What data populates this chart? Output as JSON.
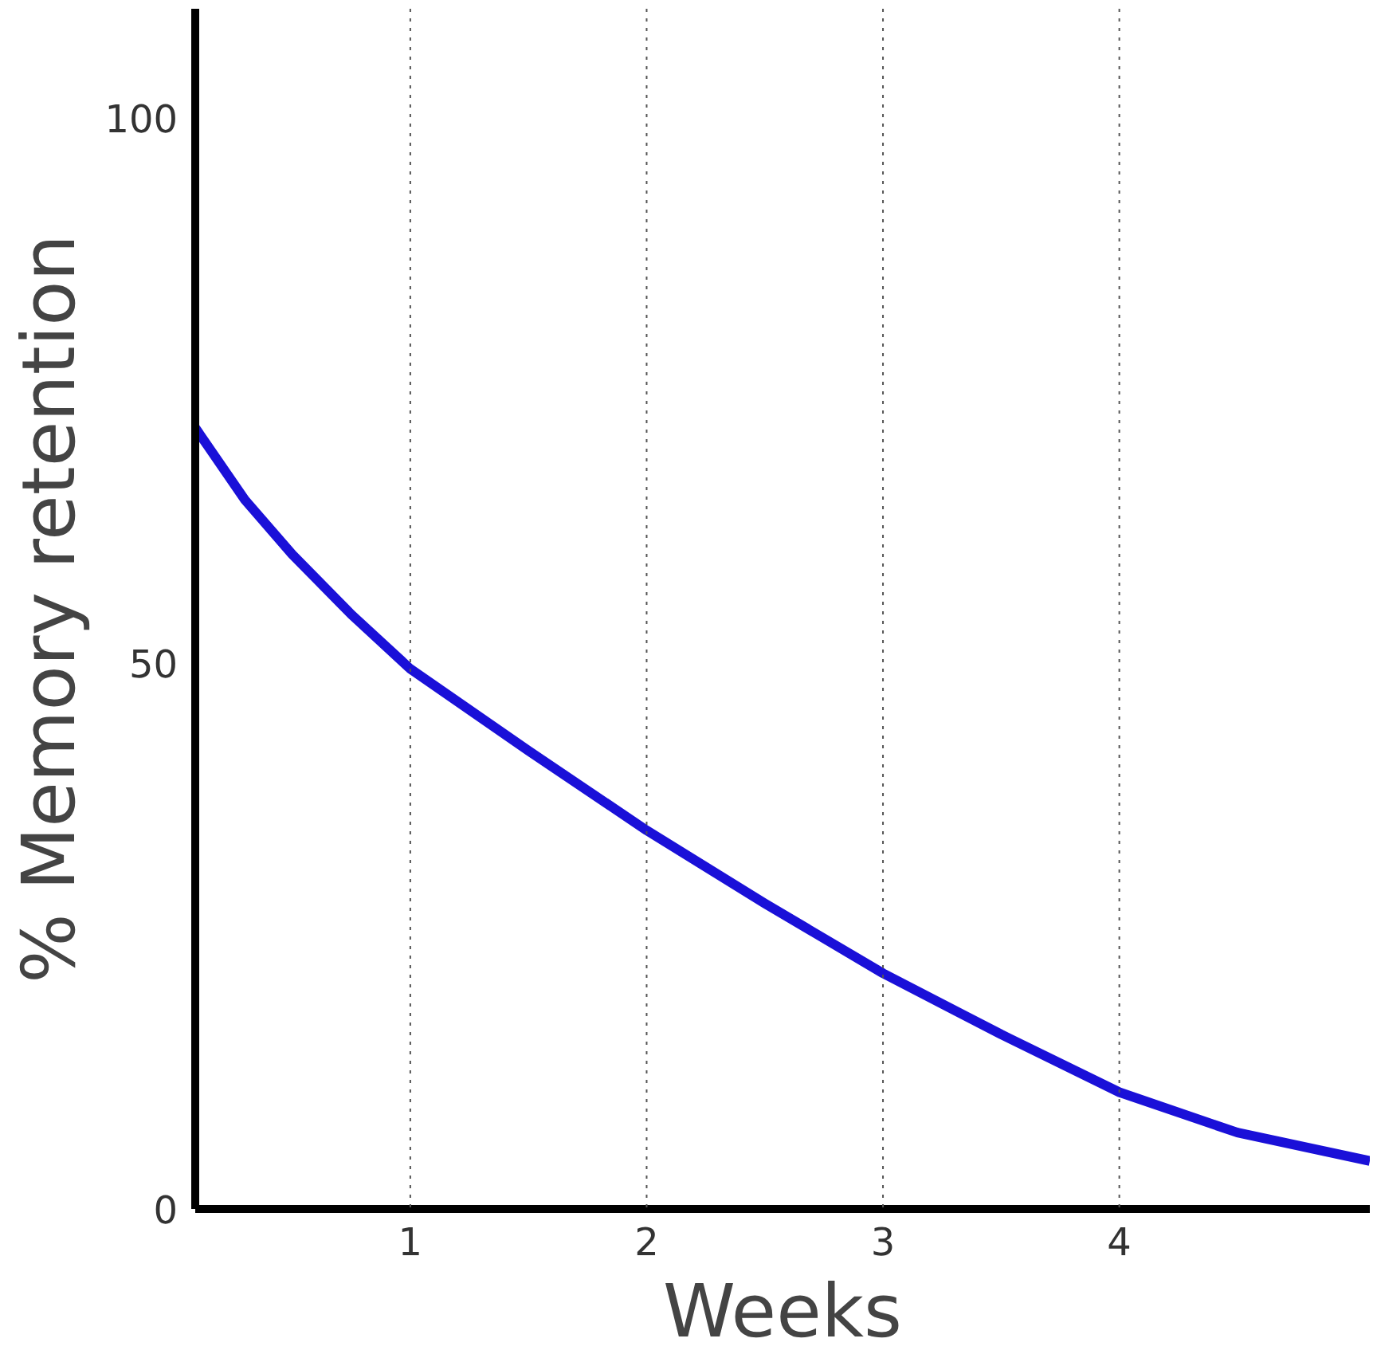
{
  "chart_data": {
    "type": "line",
    "xlabel": "Weeks",
    "ylabel": "% Memory retention",
    "x": [
      0.09,
      0.3,
      0.5,
      0.75,
      1,
      1.5,
      2,
      2.5,
      3,
      3.5,
      4,
      4.5,
      5.06
    ],
    "series": [
      {
        "color": "#1a10d8",
        "values": [
          71.6,
          65,
          60,
          54.5,
          49.5,
          42,
          34.7,
          28,
          21.6,
          16,
          10.7,
          7,
          4.4
        ]
      }
    ],
    "xlim": [
      0.09,
      5.06
    ],
    "ylim": [
      0,
      110
    ],
    "xticks": [
      1,
      2,
      3,
      4
    ],
    "yticks": [
      0,
      50,
      100
    ],
    "ref_lines": [
      {
        "axis": "x",
        "value": 1,
        "line_style": "dotted"
      },
      {
        "axis": "x",
        "value": 2,
        "line_style": "dotted"
      },
      {
        "axis": "x",
        "value": 3,
        "line_style": "dotted"
      },
      {
        "axis": "x",
        "value": 4,
        "line_style": "dotted"
      }
    ],
    "grid": false,
    "marker": "none",
    "line_style": "solid"
  }
}
